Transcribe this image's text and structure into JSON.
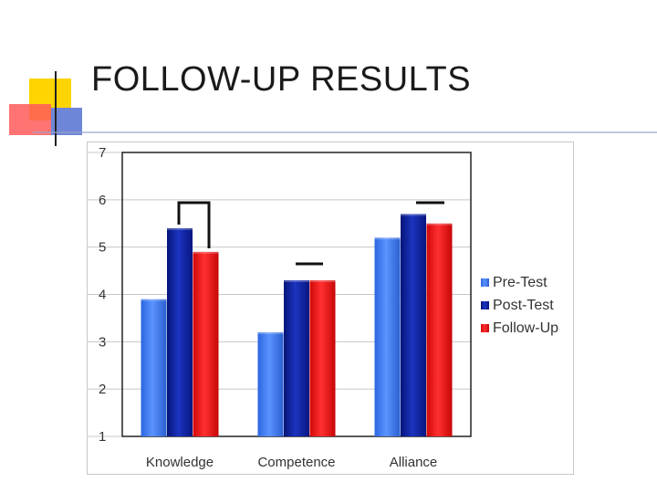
{
  "slide": {
    "title": "FOLLOW-UP RESULTS"
  },
  "colors": {
    "pre_test": "#3d7cf0",
    "post_test": "#0a1e96",
    "follow_up": "#ee1111",
    "decor_yellow": "#ffd400",
    "decor_blue": "#6e86d8",
    "decor_red": "#ff5a5a"
  },
  "chart_data": {
    "type": "bar",
    "categories": [
      "Knowledge",
      "Competence",
      "Alliance"
    ],
    "series": [
      {
        "name": "Pre-Test",
        "values": [
          3.9,
          3.2,
          5.2
        ]
      },
      {
        "name": "Post-Test",
        "values": [
          5.4,
          4.3,
          5.7
        ]
      },
      {
        "name": "Follow-Up",
        "values": [
          4.9,
          4.3,
          5.5
        ]
      }
    ],
    "yticks": [
      "1",
      "2",
      "3",
      "4",
      "5",
      "6",
      "7"
    ],
    "ylim": [
      1,
      7
    ],
    "grid": true,
    "legend": "right",
    "bar_style": "3d-shaded",
    "annotations": "bracket markers above bar groups"
  }
}
